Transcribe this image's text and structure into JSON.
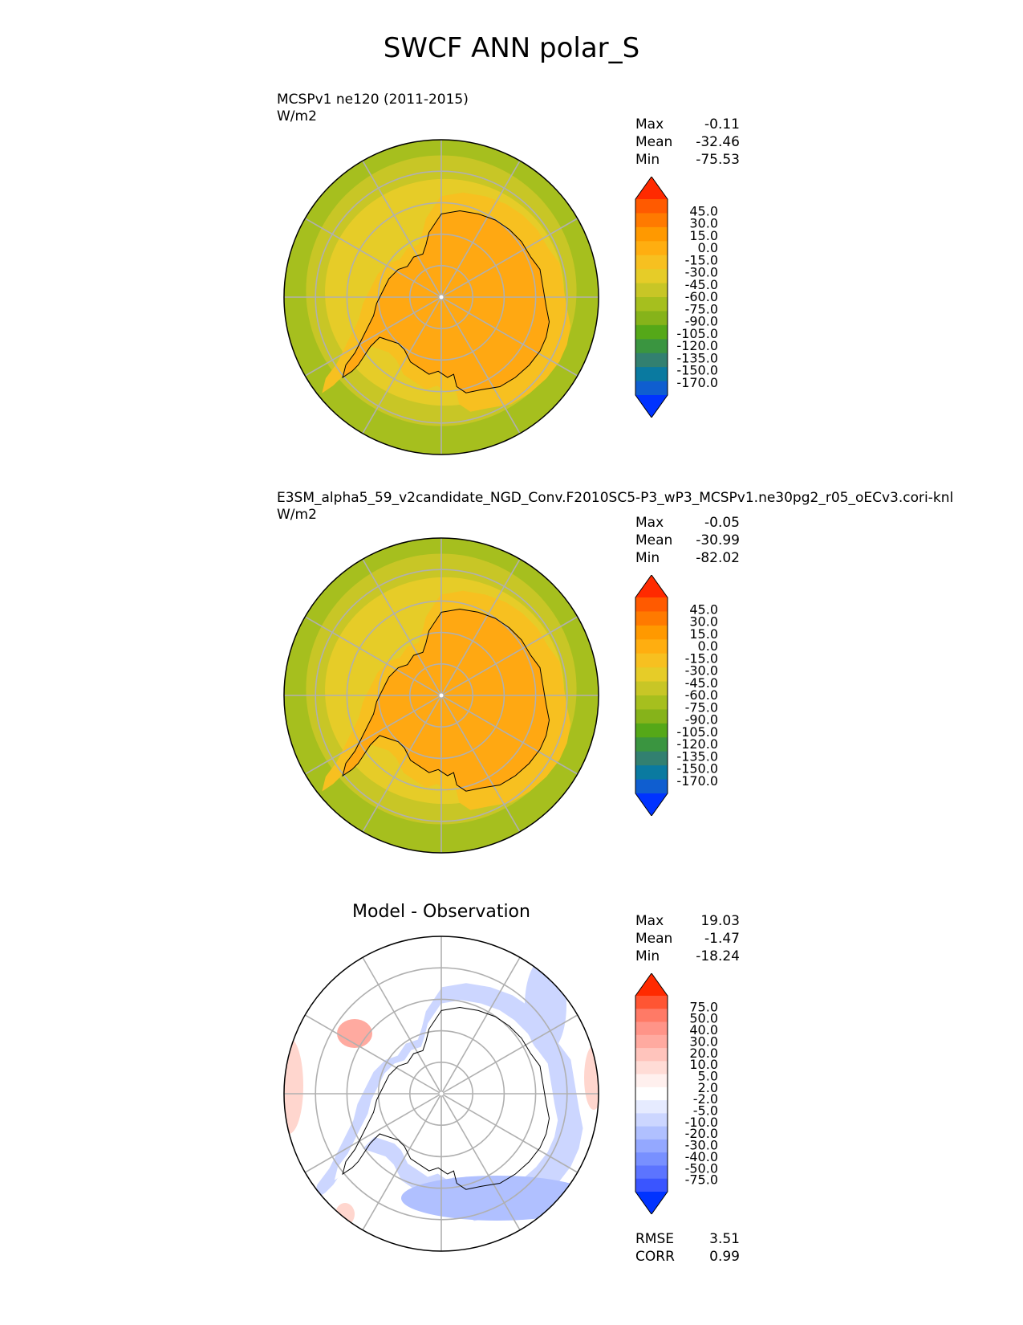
{
  "figure_title": "SWCF ANN polar_S",
  "panels": [
    {
      "subtitle_1": "MCSPv1 ne120 (2011-2015)",
      "subtitle_2": "W/m2",
      "title": "",
      "stats": [
        {
          "k": "Max",
          "v": "-0.11"
        },
        {
          "k": "Mean",
          "v": "-32.46"
        },
        {
          "k": "Min",
          "v": "-75.53"
        }
      ]
    },
    {
      "subtitle_1": "E3SM_alpha5_59_v2candidate_NGD_Conv.F2010SC5-P3_wP3_MCSPv1.ne30pg2_r05_oECv3.cori-knl",
      "subtitle_2": "W/m2",
      "title": "",
      "stats": [
        {
          "k": "Max",
          "v": "-0.05"
        },
        {
          "k": "Mean",
          "v": "-30.99"
        },
        {
          "k": "Min",
          "v": "-82.02"
        }
      ]
    },
    {
      "subtitle_1": "",
      "subtitle_2": "",
      "title": "Model - Observation",
      "stats": [
        {
          "k": "Max",
          "v": "19.03"
        },
        {
          "k": "Mean",
          "v": "-1.47"
        },
        {
          "k": "Min",
          "v": "-18.24"
        }
      ],
      "extra_stats": [
        {
          "k": "RMSE",
          "v": "3.51"
        },
        {
          "k": "CORR",
          "v": "0.99"
        }
      ]
    }
  ],
  "chart_data": [
    {
      "type": "heatmap",
      "projection": "south polar stereographic",
      "units": "W/m2",
      "colorbar": {
        "ticks": [
          "45.0",
          "30.0",
          "15.0",
          "0.0",
          "-15.0",
          "-30.0",
          "-45.0",
          "-60.0",
          "-75.0",
          "-90.0",
          "-105.0",
          "-120.0",
          "-135.0",
          "-150.0",
          "-170.0"
        ],
        "colors": [
          "#ff2a00",
          "#ff5a00",
          "#ff7a00",
          "#ff9900",
          "#ffae10",
          "#f7c020",
          "#e6cc28",
          "#c8c626",
          "#a6bf1e",
          "#86b31a",
          "#55a818",
          "#3a9540",
          "#328070",
          "#0a7aa0",
          "#0f5ed0",
          "#0033ff"
        ],
        "extend": "both"
      },
      "field": {
        "ocean_far": "#a6bf1e",
        "ocean_mid": "#c8c626",
        "ocean_near": "#e6cc28",
        "coast_ring": "#f7c020",
        "continent": "#ffa812"
      },
      "stats": {
        "max": -0.11,
        "mean": -32.46,
        "min": -75.53
      }
    },
    {
      "type": "heatmap",
      "projection": "south polar stereographic",
      "units": "W/m2",
      "colorbar": {
        "ticks": [
          "45.0",
          "30.0",
          "15.0",
          "0.0",
          "-15.0",
          "-30.0",
          "-45.0",
          "-60.0",
          "-75.0",
          "-90.0",
          "-105.0",
          "-120.0",
          "-135.0",
          "-150.0",
          "-170.0"
        ],
        "colors": [
          "#ff2a00",
          "#ff5a00",
          "#ff7a00",
          "#ff9900",
          "#ffae10",
          "#f7c020",
          "#e6cc28",
          "#c8c626",
          "#a6bf1e",
          "#86b31a",
          "#55a818",
          "#3a9540",
          "#328070",
          "#0a7aa0",
          "#0f5ed0",
          "#0033ff"
        ],
        "extend": "both"
      },
      "field": {
        "ocean_far": "#a6bf1e",
        "ocean_mid": "#c8c626",
        "ocean_near": "#e6cc28",
        "coast_ring": "#f7c020",
        "continent": "#ffa812"
      },
      "stats": {
        "max": -0.05,
        "mean": -30.99,
        "min": -82.02
      }
    },
    {
      "type": "heatmap",
      "projection": "south polar stereographic",
      "units": "W/m2",
      "colorbar": {
        "ticks": [
          "75.0",
          "50.0",
          "40.0",
          "30.0",
          "20.0",
          "10.0",
          "5.0",
          "2.0",
          "-2.0",
          "-5.0",
          "-10.0",
          "-20.0",
          "-30.0",
          "-40.0",
          "-50.0",
          "-75.0"
        ],
        "colors": [
          "#ff2a00",
          "#ff5533",
          "#ff7a66",
          "#ff9488",
          "#ffaaa0",
          "#ffc4bc",
          "#ffdcd6",
          "#fff0ee",
          "#ffffff",
          "#e6ebff",
          "#ccd6ff",
          "#b0c0ff",
          "#94a8ff",
          "#7890ff",
          "#5c74ff",
          "#3a55ff",
          "#0033ff"
        ],
        "extend": "both"
      },
      "field": {
        "background": "#ffffff",
        "neg_band": "#ccd6ff",
        "neg_strong": "#b0c0ff",
        "pos_patch": "#ffd6ce"
      },
      "stats": {
        "max": 19.03,
        "mean": -1.47,
        "min": -18.24,
        "rmse": 3.51,
        "corr": 0.99
      }
    }
  ]
}
